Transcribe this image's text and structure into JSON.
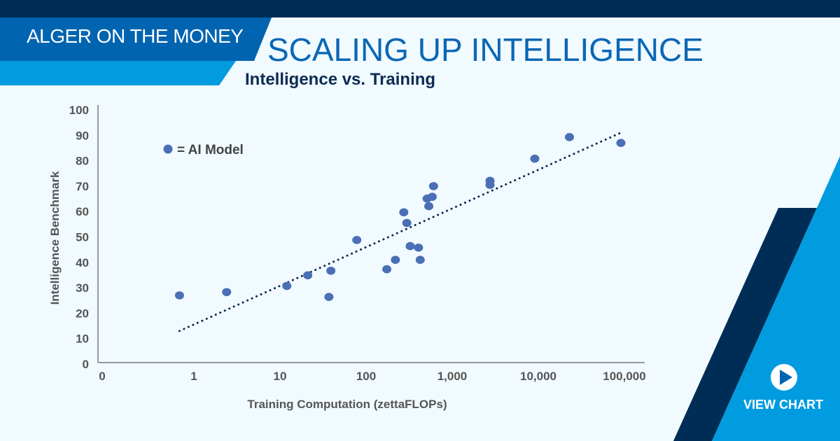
{
  "header": {
    "brand": "ALGER ON THE MONEY",
    "headline": "SCALING UP INTELLIGENCE",
    "subtitle": "Intelligence vs. Training"
  },
  "cta": {
    "label": "VIEW CHART",
    "icon": "play-icon"
  },
  "colors": {
    "navy": "#002d56",
    "mid_blue": "#0064b0",
    "light_blue": "#009cdf",
    "background": "#f1faff",
    "point": "#4a6fb5",
    "trendline": "#0d2b52"
  },
  "chart_data": {
    "type": "scatter",
    "title": "Intelligence vs. Training",
    "xlabel": "Training Computation (zettaFLOPs)",
    "ylabel": "Intelligence Benchmark",
    "xscale": "log",
    "x_tick_labels": [
      "0",
      "1",
      "10",
      "100",
      "1,000",
      "10,000",
      "100,000"
    ],
    "x_tick_values": [
      null,
      1,
      10,
      100,
      1000,
      10000,
      100000
    ],
    "y_tick_labels": [
      "0",
      "10",
      "20",
      "30",
      "40",
      "50",
      "60",
      "70",
      "80",
      "90",
      "100"
    ],
    "ylim": [
      0,
      100
    ],
    "grid": false,
    "legend": {
      "label": "= AI Model",
      "placement": "top-left"
    },
    "points": [
      {
        "x": 0.68,
        "y": 27.0
      },
      {
        "x": 2.4,
        "y": 28.3
      },
      {
        "x": 12,
        "y": 30.7
      },
      {
        "x": 21,
        "y": 34.9
      },
      {
        "x": 39,
        "y": 36.7
      },
      {
        "x": 37,
        "y": 26.4
      },
      {
        "x": 78,
        "y": 48.8
      },
      {
        "x": 174,
        "y": 37.3
      },
      {
        "x": 219,
        "y": 41.0
      },
      {
        "x": 274,
        "y": 59.7
      },
      {
        "x": 297,
        "y": 55.5
      },
      {
        "x": 325,
        "y": 46.4
      },
      {
        "x": 406,
        "y": 45.8
      },
      {
        "x": 425,
        "y": 41.0
      },
      {
        "x": 511,
        "y": 65.1
      },
      {
        "x": 535,
        "y": 62.1
      },
      {
        "x": 586,
        "y": 65.8
      },
      {
        "x": 607,
        "y": 70.0
      },
      {
        "x": 2750,
        "y": 72.1
      },
      {
        "x": 2750,
        "y": 70.5
      },
      {
        "x": 9100,
        "y": 80.8
      },
      {
        "x": 23000,
        "y": 89.3
      },
      {
        "x": 91000,
        "y": 87.0
      }
    ],
    "trendline": {
      "style": "dotted",
      "from": {
        "x": 0.68,
        "y": 13.0
      },
      "to": {
        "x": 92000,
        "y": 91.1
      }
    }
  }
}
